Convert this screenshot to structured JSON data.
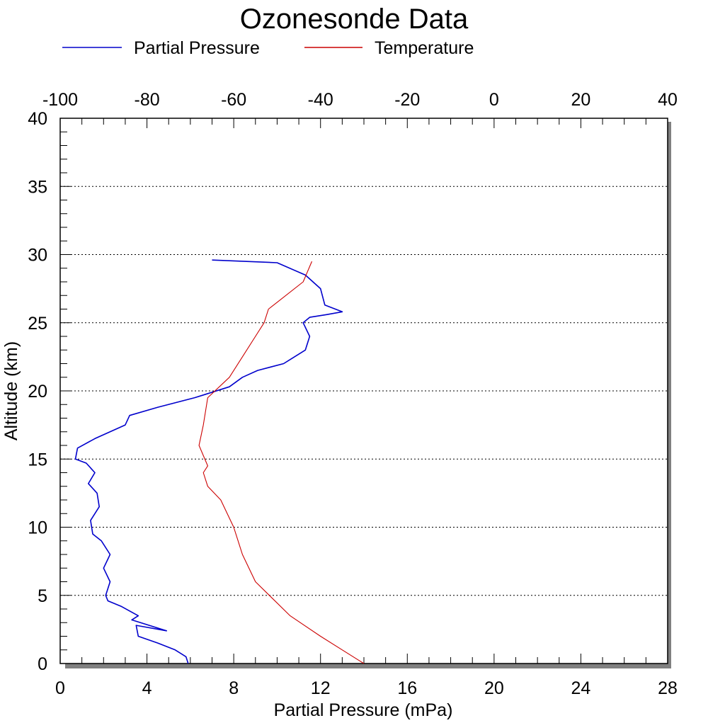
{
  "chart_data": {
    "type": "line",
    "title": "Ozonesonde Data",
    "legend": {
      "placement": "top-left",
      "entries": [
        {
          "name": "Partial Pressure",
          "color": "#0000cc"
        },
        {
          "name": "Temperature",
          "color": "#cc0000"
        }
      ]
    },
    "grid": {
      "horizontal": true,
      "style": "dotted"
    },
    "axes": {
      "y": {
        "label": "Altitude (km)",
        "range": [
          0,
          40
        ],
        "ticks": [
          "0",
          "5",
          "10",
          "15",
          "20",
          "25",
          "30",
          "35",
          "40"
        ]
      },
      "x_bottom": {
        "label": "Partial Pressure (mPa)",
        "range": [
          0,
          28
        ],
        "ticks": [
          "0",
          "4",
          "8",
          "12",
          "16",
          "20",
          "24",
          "28"
        ]
      },
      "x_top": {
        "label": "",
        "range": [
          -100,
          40
        ],
        "ticks": [
          "-100",
          "-80",
          "-60",
          "-40",
          "-20",
          "0",
          "20",
          "40"
        ]
      }
    },
    "series": [
      {
        "name": "Partial Pressure",
        "axis": "x_bottom",
        "color": "#0000cc",
        "x": [
          5.9,
          5.8,
          5.3,
          4.5,
          3.6,
          3.5,
          4.9,
          3.3,
          3.6,
          2.8,
          2.2,
          2.1,
          2.3,
          2.0,
          2.3,
          1.9,
          1.5,
          1.4,
          1.8,
          1.7,
          1.3,
          1.6,
          1.2,
          0.7,
          0.8,
          1.6,
          3.0,
          3.2,
          4.5,
          6.2,
          6.6,
          7.8,
          8.4,
          9.1,
          10.3,
          11.3,
          11.5,
          11.2,
          11.5,
          12.3,
          13.0,
          12.2,
          12.0,
          11.3,
          10.0,
          7.0
        ],
        "y": [
          0.0,
          0.5,
          1.0,
          1.5,
          2.0,
          2.8,
          2.4,
          3.2,
          3.5,
          4.2,
          4.6,
          5.0,
          6.0,
          7.0,
          8.0,
          9.0,
          9.5,
          10.5,
          11.5,
          12.5,
          13.2,
          14.0,
          14.7,
          15.0,
          15.8,
          16.5,
          17.5,
          18.2,
          18.8,
          19.5,
          19.7,
          20.3,
          21.0,
          21.5,
          22.0,
          23.0,
          24.0,
          25.0,
          25.4,
          25.6,
          25.8,
          26.3,
          27.5,
          28.5,
          29.4,
          29.6
        ]
      },
      {
        "name": "Temperature",
        "axis": "x_top",
        "color": "#cc0000",
        "x": [
          -30,
          -35,
          -40,
          -47,
          -55,
          -58,
          -60,
          -63,
          -66,
          -67,
          -66,
          -68,
          -67,
          -66,
          -61,
          -58,
          -55,
          -53,
          -52,
          -50,
          -44,
          -42
        ],
        "y": [
          0.0,
          1.0,
          2.0,
          3.5,
          6.0,
          8.0,
          10.0,
          12.0,
          13.0,
          14.0,
          14.5,
          16.0,
          17.5,
          19.5,
          21.0,
          22.5,
          24.0,
          25.0,
          26.0,
          26.5,
          28.0,
          29.5
        ]
      }
    ]
  }
}
